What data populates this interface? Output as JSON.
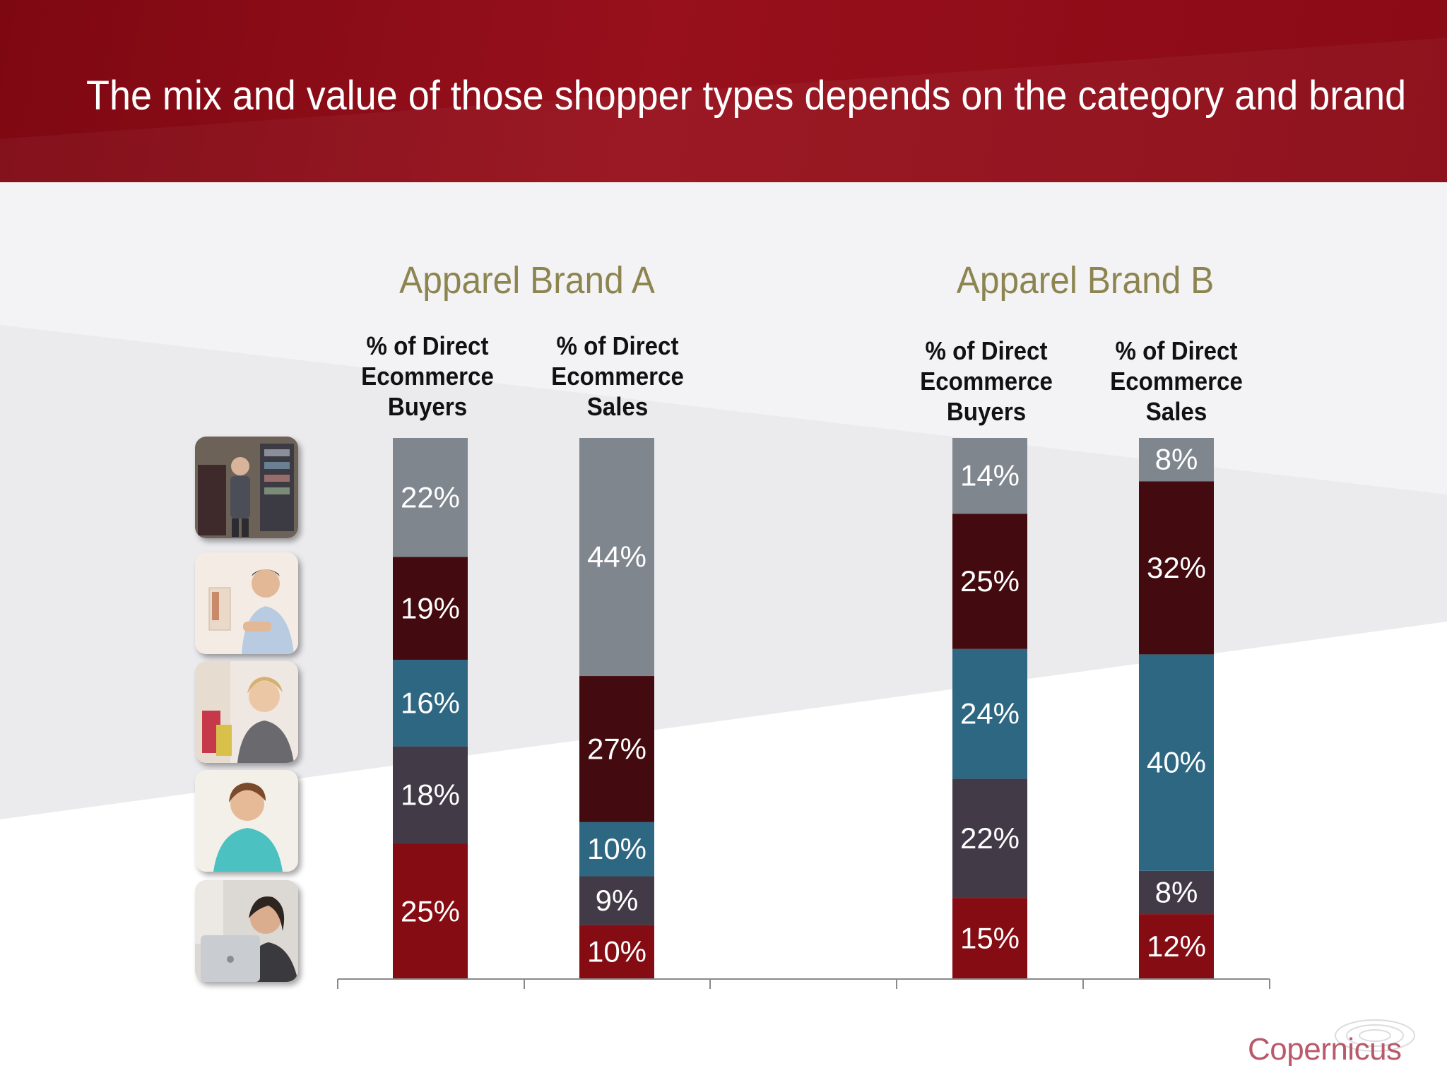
{
  "slide": {
    "title": "The mix and value of those shopper types depends on the category and brand"
  },
  "brands": [
    {
      "name": "Apparel Brand A"
    },
    {
      "name": "Apparel Brand B"
    }
  ],
  "column_headers": [
    [
      "% of Direct",
      "Ecommerce",
      "Buyers"
    ],
    [
      "% of Direct",
      "Ecommerce",
      "Sales"
    ],
    [
      "% of Direct",
      "Ecommerce",
      "Buyers"
    ],
    [
      "% of Direct",
      "Ecommerce",
      "Sales"
    ]
  ],
  "photos": [
    {
      "icon": "shopper-browsing-rack-photo"
    },
    {
      "icon": "man-checking-watch-photo"
    },
    {
      "icon": "woman-with-shopping-bags-photo"
    },
    {
      "icon": "woman-looking-down-photo"
    },
    {
      "icon": "woman-with-laptop-photo"
    }
  ],
  "logo": {
    "text": "Copernicus"
  },
  "colors": {
    "header": "#8a0a15",
    "brand_title": "#8d8550",
    "segment_top": "#7f868e",
    "segment_2": "#430a0f",
    "segment_3": "#2e6782",
    "segment_4": "#433a47",
    "segment_bottom": "#860c14",
    "logo": "#b9596a"
  },
  "chart_data": {
    "type": "bar",
    "stacked": true,
    "normalized": true,
    "ylim": [
      0,
      100
    ],
    "categories": [
      "Apparel Brand A % of Direct Ecommerce Buyers",
      "Apparel Brand A % of Direct Ecommerce Sales",
      "Apparel Brand B % of Direct Ecommerce Buyers",
      "Apparel Brand B % of Direct Ecommerce Sales"
    ],
    "series": [
      {
        "color": "#860c14",
        "values": [
          25,
          10,
          15,
          12
        ]
      },
      {
        "color": "#433a47",
        "values": [
          18,
          9,
          22,
          8
        ]
      },
      {
        "color": "#2e6782",
        "values": [
          16,
          10,
          24,
          40
        ]
      },
      {
        "color": "#430a0f",
        "values": [
          19,
          27,
          25,
          32
        ]
      },
      {
        "color": "#7f868e",
        "values": [
          22,
          44,
          14,
          8
        ]
      }
    ],
    "data_labels": [
      [
        "25%",
        "10%",
        "15%",
        "12%"
      ],
      [
        "18%",
        "9%",
        "22%",
        "8%"
      ],
      [
        "16%",
        "10%",
        "24%",
        "40%"
      ],
      [
        "19%",
        "27%",
        "25%",
        "32%"
      ],
      [
        "22%",
        "44%",
        "14%",
        "8%"
      ]
    ],
    "legend": "none",
    "grid": false
  }
}
